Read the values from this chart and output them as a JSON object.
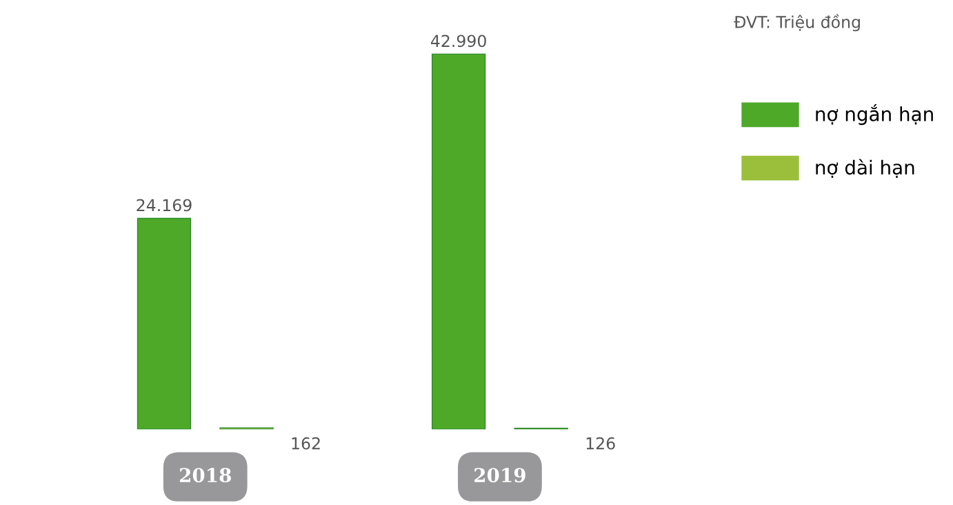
{
  "chart_data": {
    "type": "bar",
    "categories": [
      "2018",
      "2019"
    ],
    "series": [
      {
        "name": "nợ ngắn hạn",
        "color": "#4ea928",
        "values": [
          24169,
          42990
        ],
        "value_labels": [
          "24.169",
          "42.990"
        ]
      },
      {
        "name": "nợ dài hạn",
        "color": "#9bbf3a",
        "values": [
          162,
          126
        ],
        "value_labels": [
          "162",
          "126"
        ]
      }
    ],
    "annotations": [
      "ĐVT: Triệu đồng"
    ],
    "legend": "right",
    "grid": false
  }
}
